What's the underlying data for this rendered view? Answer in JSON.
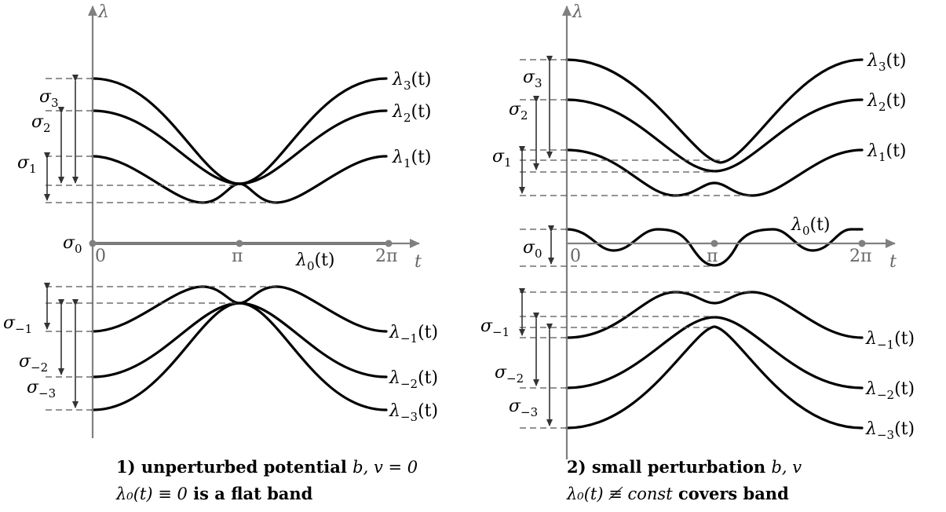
{
  "axes": {
    "y_label": "λ",
    "x_label": "t",
    "ticks": [
      "0",
      "π",
      "2π"
    ]
  },
  "panel1": {
    "curves": [
      {
        "name": "λ",
        "sub": "3",
        "arg": "(t)"
      },
      {
        "name": "λ",
        "sub": "2",
        "arg": "(t)"
      },
      {
        "name": "λ",
        "sub": "1",
        "arg": "(t)"
      },
      {
        "name": "λ",
        "sub": "0",
        "arg": "(t)"
      },
      {
        "name": "λ",
        "sub": "−1",
        "arg": "(t)"
      },
      {
        "name": "λ",
        "sub": "−2",
        "arg": "(t)"
      },
      {
        "name": "λ",
        "sub": "−3",
        "arg": "(t)"
      }
    ],
    "sigmas": [
      {
        "name": "σ",
        "sub": "3"
      },
      {
        "name": "σ",
        "sub": "2"
      },
      {
        "name": "σ",
        "sub": "1"
      },
      {
        "name": "σ",
        "sub": "0"
      },
      {
        "name": "σ",
        "sub": "−1"
      },
      {
        "name": "σ",
        "sub": "−2"
      },
      {
        "name": "σ",
        "sub": "−3"
      }
    ],
    "caption": {
      "line1_bold": "1) unperturbed potential ",
      "line1_math": "b, v = 0",
      "line2_math": "λ₀(t) ≡ 0",
      "line2_bold": " is a flat band"
    }
  },
  "panel2": {
    "curves": [
      {
        "name": "λ",
        "sub": "3",
        "arg": "(t)"
      },
      {
        "name": "λ",
        "sub": "2",
        "arg": "(t)"
      },
      {
        "name": "λ",
        "sub": "1",
        "arg": "(t)"
      },
      {
        "name": "λ",
        "sub": "0",
        "arg": "(t)"
      },
      {
        "name": "λ",
        "sub": "−1",
        "arg": "(t)"
      },
      {
        "name": "λ",
        "sub": "−2",
        "arg": "(t)"
      },
      {
        "name": "λ",
        "sub": "−3",
        "arg": "(t)"
      }
    ],
    "sigmas": [
      {
        "name": "σ",
        "sub": "3"
      },
      {
        "name": "σ",
        "sub": "2"
      },
      {
        "name": "σ",
        "sub": "1"
      },
      {
        "name": "σ",
        "sub": "0"
      },
      {
        "name": "σ",
        "sub": "−1"
      },
      {
        "name": "σ",
        "sub": "−2"
      },
      {
        "name": "σ",
        "sub": "−3"
      }
    ],
    "caption": {
      "line1_bold": "2) small perturbation ",
      "line1_math": "b, v",
      "line2_math": "λ₀(t) ≢ ",
      "line2_math_it": "const",
      "line2_bold": " covers band"
    }
  }
}
